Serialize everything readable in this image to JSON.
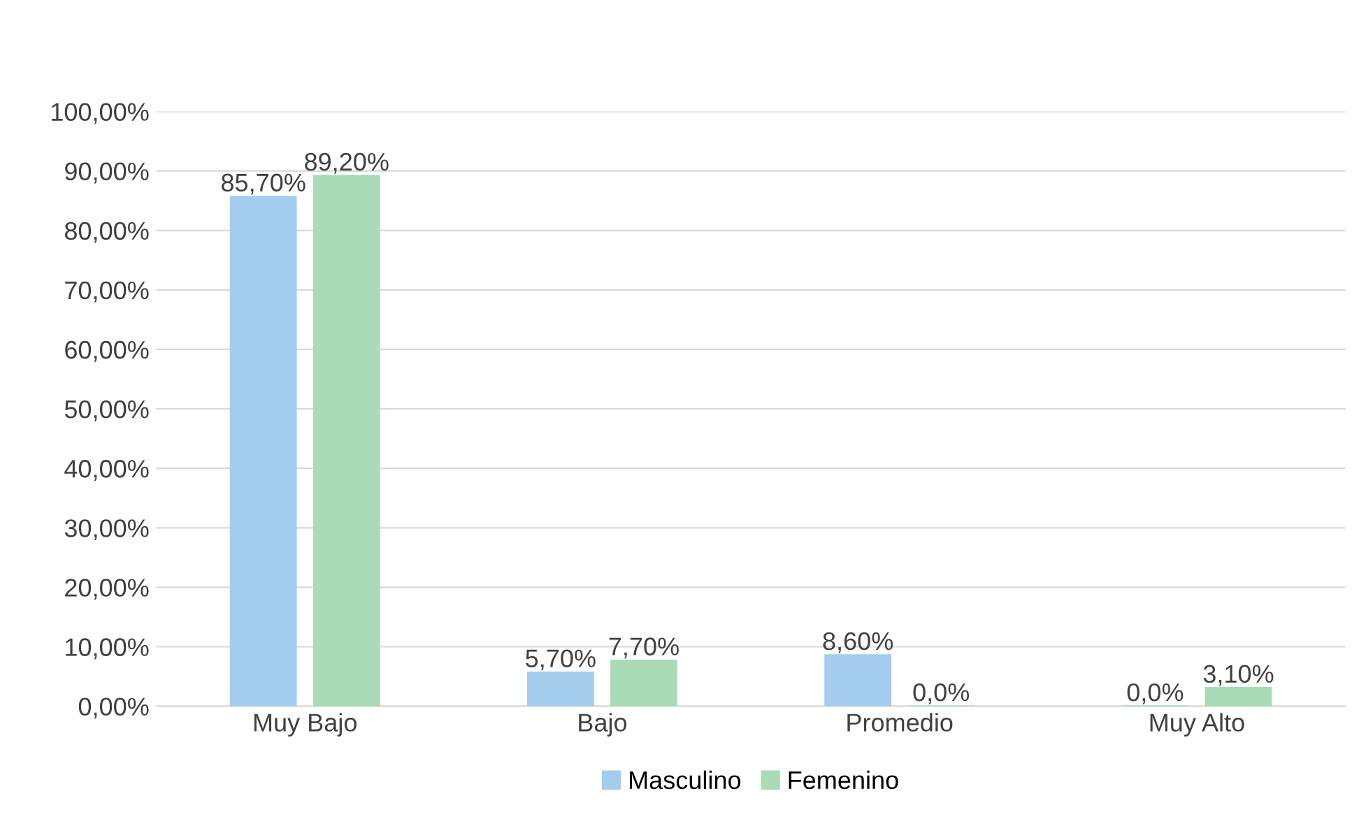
{
  "chart_data": {
    "type": "bar",
    "categories": [
      "Muy Bajo",
      "Bajo",
      "Promedio",
      "Muy Alto"
    ],
    "series": [
      {
        "name": "Masculino",
        "color": "#a3cdee",
        "values": [
          85.7,
          5.7,
          8.6,
          0.0
        ],
        "value_labels": [
          "85,70%",
          "5,70%",
          "8,60%",
          "0,0%"
        ]
      },
      {
        "name": "Femenino",
        "color": "#a9dbb6",
        "values": [
          89.2,
          7.7,
          0.0,
          3.1
        ],
        "value_labels": [
          "89,20%",
          "7,70%",
          "0,0%",
          "3,10%"
        ]
      }
    ],
    "ylim": [
      0,
      100
    ],
    "yticks": [
      {
        "value": 0,
        "label": "0,00%"
      },
      {
        "value": 10,
        "label": "10,00%"
      },
      {
        "value": 20,
        "label": "20,00%"
      },
      {
        "value": 30,
        "label": "30,00%"
      },
      {
        "value": 40,
        "label": "40,00%"
      },
      {
        "value": 50,
        "label": "50,00%"
      },
      {
        "value": 60,
        "label": "60,00%"
      },
      {
        "value": 70,
        "label": "70,00%"
      },
      {
        "value": 80,
        "label": "80,00%"
      },
      {
        "value": 90,
        "label": "90,00%"
      },
      {
        "value": 100,
        "label": "100,00%"
      }
    ],
    "grid": "y",
    "legend": "bottom"
  }
}
